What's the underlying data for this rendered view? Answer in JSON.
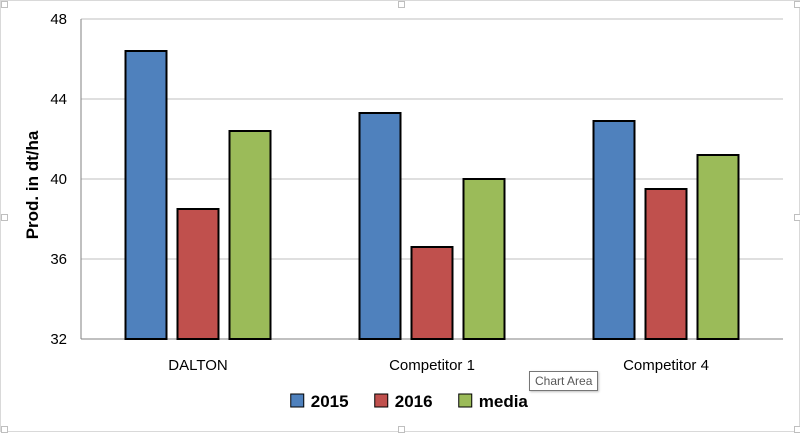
{
  "tooltip": "Chart Area",
  "colors": {
    "2015": "#4f81bd",
    "2016": "#c0504d",
    "media": "#9bbb59"
  },
  "chart_data": {
    "type": "bar",
    "title": "",
    "xlabel": "",
    "ylabel": "Prod. in dt/ha",
    "categories": [
      "DALTON",
      "Competitor 1",
      "Competitor 4"
    ],
    "series": [
      {
        "name": "2015",
        "values": [
          46.4,
          43.3,
          42.9
        ]
      },
      {
        "name": "2016",
        "values": [
          38.5,
          36.6,
          39.5
        ]
      },
      {
        "name": "media",
        "values": [
          42.4,
          40.0,
          41.2
        ]
      }
    ],
    "ylim": [
      32,
      48
    ],
    "yticks": [
      32,
      36,
      40,
      44,
      48
    ],
    "grid": true,
    "legend_position": "bottom"
  }
}
